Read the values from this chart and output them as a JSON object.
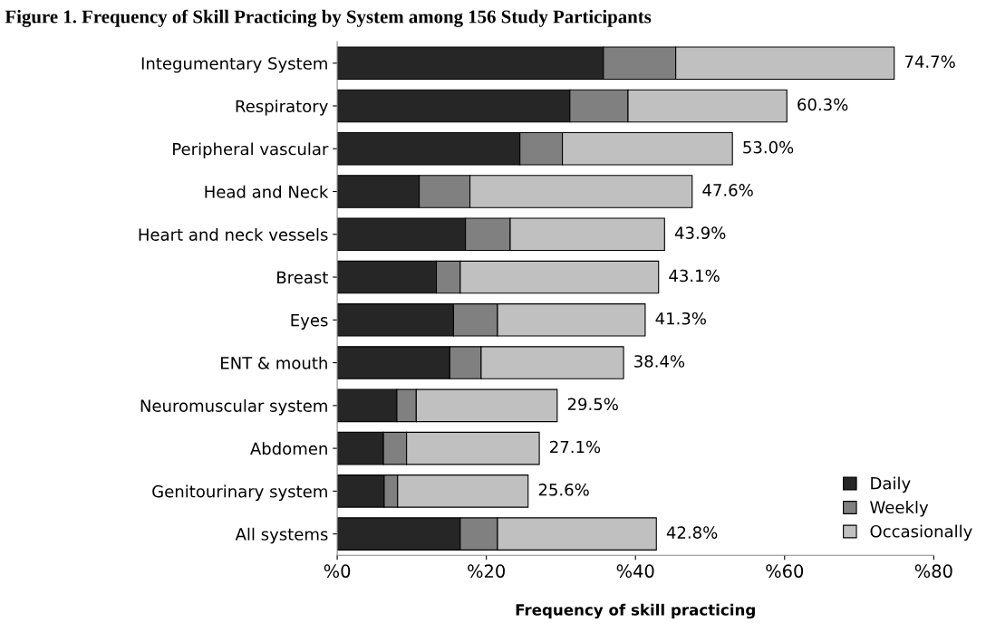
{
  "chart_data": {
    "type": "bar",
    "orientation": "horizontal",
    "stacked": true,
    "title": "Figure 1. Frequency of Skill Practicing by System among 156 Study Participants",
    "xlabel": "Frequency of skill practicing",
    "categories": [
      "Integumentary System",
      "Respiratory",
      "Peripheral vascular",
      "Head and Neck",
      "Heart and neck vessels",
      "Breast",
      "Eyes",
      "ENT & mouth",
      "Neuromuscular system",
      "Abdomen",
      "Genitourinary system",
      "All systems"
    ],
    "series": [
      {
        "name": "Daily",
        "color": "#262626",
        "values": [
          35.7,
          31.2,
          24.5,
          11.0,
          17.2,
          13.3,
          15.6,
          15.1,
          8.0,
          6.2,
          6.3,
          16.5
        ]
      },
      {
        "name": "Weekly",
        "color": "#808080",
        "values": [
          9.7,
          7.8,
          5.7,
          6.8,
          6.0,
          3.2,
          5.9,
          4.2,
          2.6,
          3.1,
          1.8,
          5.0
        ]
      },
      {
        "name": "Occasionally",
        "color": "#c0c0c0",
        "values": [
          29.3,
          21.3,
          22.8,
          29.8,
          20.7,
          26.6,
          19.8,
          19.1,
          18.9,
          17.8,
          17.5,
          21.3
        ]
      }
    ],
    "totals": [
      "74.7%",
      "60.3%",
      "53.0%",
      "47.6%",
      "43.9%",
      "43.1%",
      "41.3%",
      "38.4%",
      "29.5%",
      "27.1%",
      "25.6%",
      "42.8%"
    ],
    "xlim": [
      0,
      80
    ],
    "xticks": [
      {
        "value": 0,
        "label": "%0"
      },
      {
        "value": 20,
        "label": "%20"
      },
      {
        "value": 40,
        "label": "%40"
      },
      {
        "value": 60,
        "label": "%60"
      },
      {
        "value": 80,
        "label": "%80"
      }
    ],
    "legend": "bottom right",
    "grid": false
  }
}
